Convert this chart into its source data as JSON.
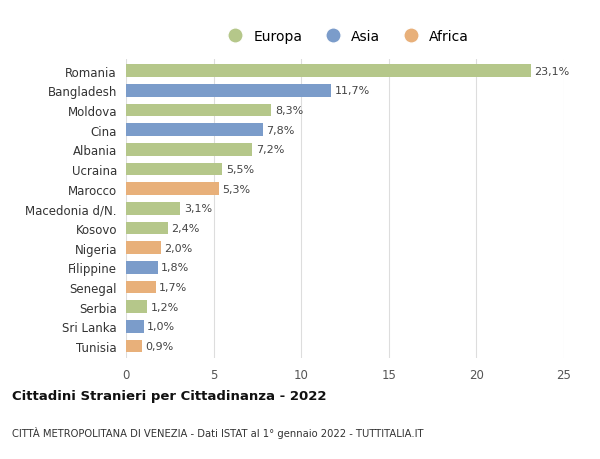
{
  "countries": [
    "Romania",
    "Bangladesh",
    "Moldova",
    "Cina",
    "Albania",
    "Ucraina",
    "Marocco",
    "Macedonia d/N.",
    "Kosovo",
    "Nigeria",
    "Filippine",
    "Senegal",
    "Serbia",
    "Sri Lanka",
    "Tunisia"
  ],
  "values": [
    23.1,
    11.7,
    8.3,
    7.8,
    7.2,
    5.5,
    5.3,
    3.1,
    2.4,
    2.0,
    1.8,
    1.7,
    1.2,
    1.0,
    0.9
  ],
  "labels": [
    "23,1%",
    "11,7%",
    "8,3%",
    "7,8%",
    "7,2%",
    "5,5%",
    "5,3%",
    "3,1%",
    "2,4%",
    "2,0%",
    "1,8%",
    "1,7%",
    "1,2%",
    "1,0%",
    "0,9%"
  ],
  "continents": [
    "Europa",
    "Asia",
    "Europa",
    "Asia",
    "Europa",
    "Europa",
    "Africa",
    "Europa",
    "Europa",
    "Africa",
    "Asia",
    "Africa",
    "Europa",
    "Asia",
    "Africa"
  ],
  "colors": {
    "Europa": "#b5c78a",
    "Asia": "#7b9cca",
    "Africa": "#e8b07a"
  },
  "title1": "Cittadini Stranieri per Cittadinanza - 2022",
  "title2": "CITTÀ METROPOLITANA DI VENEZIA - Dati ISTAT al 1° gennaio 2022 - TUTTITALIA.IT",
  "xlim": [
    0,
    25
  ],
  "xticks": [
    0,
    5,
    10,
    15,
    20,
    25
  ],
  "background_color": "#ffffff",
  "grid_color": "#dddddd"
}
